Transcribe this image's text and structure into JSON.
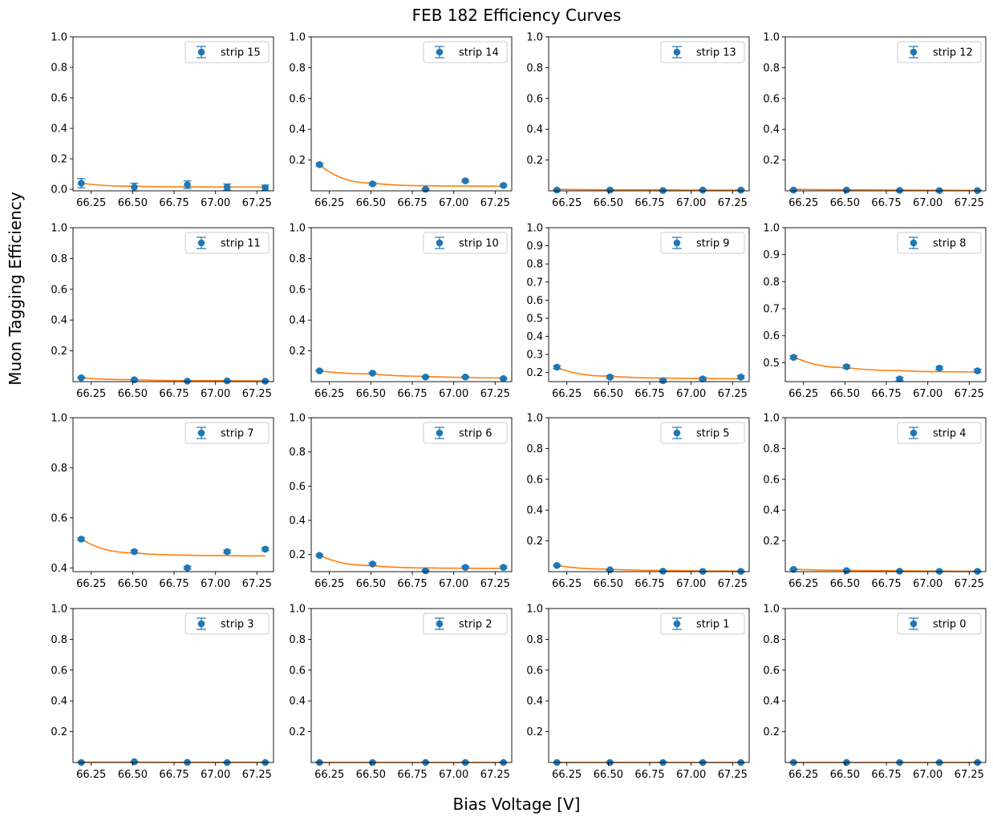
{
  "figure": {
    "title": "FEB 182 Efficiency Curves",
    "xlabel": "Bias Voltage [V]",
    "ylabel": "Muon Tagging Efficiency"
  },
  "colors": {
    "marker": "#1f77b4",
    "fit": "#ff7f0e"
  },
  "chart_data": [
    {
      "type": "scatter",
      "legend": "strip 15",
      "x": [
        66.19,
        66.51,
        66.83,
        67.07,
        67.3
      ],
      "y": [
        0.04,
        0.015,
        0.03,
        0.015,
        0.01
      ],
      "yerr": [
        0.03,
        0.025,
        0.025,
        0.02,
        0.018
      ],
      "ylim": [
        -0.01,
        1.0
      ],
      "yticks": [
        0.0,
        0.2,
        0.4,
        0.6,
        0.8,
        1.0
      ],
      "fit_y": [
        0.04,
        0.02,
        0.016,
        0.015,
        0.015
      ],
      "xticks": [
        66.25,
        66.5,
        66.75,
        67.0,
        67.25
      ],
      "xlim": [
        66.14,
        67.35
      ],
      "legend_position": "top-right"
    },
    {
      "type": "scatter",
      "legend": "strip 14",
      "x": [
        66.19,
        66.51,
        66.83,
        67.07,
        67.3
      ],
      "y": [
        0.17,
        0.045,
        0.01,
        0.065,
        0.035
      ],
      "yerr": [
        0.01,
        0.008,
        0.006,
        0.008,
        0.008
      ],
      "ylim": [
        0.0,
        1.0
      ],
      "yticks": [
        0.2,
        0.4,
        0.6,
        0.8,
        1.0
      ],
      "fit_y": [
        0.168,
        0.05,
        0.033,
        0.031,
        0.03
      ],
      "xticks": [
        66.25,
        66.5,
        66.75,
        67.0,
        67.25
      ],
      "xlim": [
        66.14,
        67.35
      ],
      "legend_position": "top-right"
    },
    {
      "type": "scatter",
      "legend": "strip 13",
      "x": [
        66.19,
        66.51,
        66.83,
        67.07,
        67.3
      ],
      "y": [
        0.005,
        0.005,
        0.002,
        0.005,
        0.005
      ],
      "yerr": [
        0.003,
        0.003,
        0.002,
        0.003,
        0.003
      ],
      "ylim": [
        0.0,
        1.0
      ],
      "yticks": [
        0.2,
        0.4,
        0.6,
        0.8,
        1.0
      ],
      "fit_y": [
        0.01,
        0.007,
        0.006,
        0.005,
        0.005
      ],
      "xticks": [
        66.25,
        66.5,
        66.75,
        67.0,
        67.25
      ],
      "xlim": [
        66.14,
        67.35
      ],
      "legend_position": "top-right"
    },
    {
      "type": "scatter",
      "legend": "strip 12",
      "x": [
        66.19,
        66.51,
        66.83,
        67.07,
        67.3
      ],
      "y": [
        0.005,
        0.005,
        0.003,
        0.002,
        0.002
      ],
      "yerr": [
        0.003,
        0.003,
        0.002,
        0.002,
        0.002
      ],
      "ylim": [
        0.0,
        1.0
      ],
      "yticks": [
        0.2,
        0.4,
        0.6,
        0.8,
        1.0
      ],
      "fit_y": [
        0.01,
        0.007,
        0.005,
        0.004,
        0.003
      ],
      "xticks": [
        66.25,
        66.5,
        66.75,
        67.0,
        67.25
      ],
      "xlim": [
        66.14,
        67.35
      ],
      "legend_position": "top-right"
    },
    {
      "type": "scatter",
      "legend": "strip 11",
      "x": [
        66.19,
        66.51,
        66.83,
        67.07,
        67.3
      ],
      "y": [
        0.025,
        0.012,
        0.003,
        0.005,
        0.003
      ],
      "yerr": [
        0.004,
        0.003,
        0.002,
        0.002,
        0.002
      ],
      "ylim": [
        0.0,
        1.0
      ],
      "yticks": [
        0.2,
        0.4,
        0.6,
        0.8,
        1.0
      ],
      "fit_y": [
        0.025,
        0.012,
        0.007,
        0.006,
        0.005
      ],
      "xticks": [
        66.25,
        66.5,
        66.75,
        67.0,
        67.25
      ],
      "xlim": [
        66.14,
        67.35
      ],
      "legend_position": "top-right"
    },
    {
      "type": "scatter",
      "legend": "strip 10",
      "x": [
        66.19,
        66.51,
        66.83,
        67.07,
        67.3
      ],
      "y": [
        0.07,
        0.055,
        0.03,
        0.03,
        0.02
      ],
      "yerr": [
        0.005,
        0.005,
        0.004,
        0.004,
        0.004
      ],
      "ylim": [
        0.0,
        1.0
      ],
      "yticks": [
        0.2,
        0.4,
        0.6,
        0.8,
        1.0
      ],
      "fit_y": [
        0.07,
        0.05,
        0.035,
        0.028,
        0.024
      ],
      "xticks": [
        66.25,
        66.5,
        66.75,
        67.0,
        67.25
      ],
      "xlim": [
        66.14,
        67.35
      ],
      "legend_position": "top-right"
    },
    {
      "type": "scatter",
      "legend": "strip 9",
      "x": [
        66.19,
        66.51,
        66.83,
        67.07,
        67.3
      ],
      "y": [
        0.23,
        0.175,
        0.155,
        0.165,
        0.175
      ],
      "yerr": [
        0.008,
        0.008,
        0.007,
        0.008,
        0.008
      ],
      "ylim": [
        0.15,
        1.0
      ],
      "yticks": [
        0.2,
        0.3,
        0.4,
        0.5,
        0.6,
        0.7,
        0.8,
        0.9,
        1.0
      ],
      "fit_y": [
        0.227,
        0.18,
        0.17,
        0.167,
        0.166
      ],
      "xticks": [
        66.25,
        66.5,
        66.75,
        67.0,
        67.25
      ],
      "xlim": [
        66.14,
        67.35
      ],
      "legend_position": "top-right"
    },
    {
      "type": "scatter",
      "legend": "strip 8",
      "x": [
        66.19,
        66.51,
        66.83,
        67.07,
        67.3
      ],
      "y": [
        0.52,
        0.485,
        0.44,
        0.48,
        0.47
      ],
      "yerr": [
        0.006,
        0.006,
        0.006,
        0.006,
        0.006
      ],
      "ylim": [
        0.43,
        1.0
      ],
      "yticks": [
        0.5,
        0.6,
        0.7,
        0.8,
        0.9,
        1.0
      ],
      "fit_y": [
        0.522,
        0.482,
        0.471,
        0.467,
        0.466
      ],
      "xticks": [
        66.25,
        66.5,
        66.75,
        67.0,
        67.25
      ],
      "xlim": [
        66.14,
        67.35
      ],
      "legend_position": "top-right"
    },
    {
      "type": "scatter",
      "legend": "strip 7",
      "x": [
        66.19,
        66.51,
        66.83,
        67.07,
        67.3
      ],
      "y": [
        0.515,
        0.465,
        0.4,
        0.465,
        0.475
      ],
      "yerr": [
        0.006,
        0.006,
        0.006,
        0.006,
        0.006
      ],
      "ylim": [
        0.385,
        1.0
      ],
      "yticks": [
        0.4,
        0.6,
        0.8,
        1.0
      ],
      "fit_y": [
        0.515,
        0.46,
        0.451,
        0.449,
        0.448
      ],
      "xticks": [
        66.25,
        66.5,
        66.75,
        67.0,
        67.25
      ],
      "xlim": [
        66.14,
        67.35
      ],
      "legend_position": "top-right"
    },
    {
      "type": "scatter",
      "legend": "strip 6",
      "x": [
        66.19,
        66.51,
        66.83,
        67.07,
        67.3
      ],
      "y": [
        0.195,
        0.145,
        0.105,
        0.125,
        0.125
      ],
      "yerr": [
        0.006,
        0.006,
        0.005,
        0.006,
        0.006
      ],
      "ylim": [
        0.1,
        1.0
      ],
      "yticks": [
        0.2,
        0.4,
        0.6,
        0.8,
        1.0
      ],
      "fit_y": [
        0.195,
        0.135,
        0.122,
        0.12,
        0.119
      ],
      "xticks": [
        66.25,
        66.5,
        66.75,
        67.0,
        67.25
      ],
      "xlim": [
        66.14,
        67.35
      ],
      "legend_position": "top-right"
    },
    {
      "type": "scatter",
      "legend": "strip 5",
      "x": [
        66.19,
        66.51,
        66.83,
        67.07,
        67.3
      ],
      "y": [
        0.04,
        0.012,
        0.003,
        0.002,
        0.002
      ],
      "yerr": [
        0.005,
        0.003,
        0.002,
        0.002,
        0.002
      ],
      "ylim": [
        0.0,
        1.0
      ],
      "yticks": [
        0.2,
        0.4,
        0.6,
        0.8,
        1.0
      ],
      "fit_y": [
        0.04,
        0.016,
        0.008,
        0.005,
        0.004
      ],
      "xticks": [
        66.25,
        66.5,
        66.75,
        67.0,
        67.25
      ],
      "xlim": [
        66.14,
        67.35
      ],
      "legend_position": "top-right"
    },
    {
      "type": "scatter",
      "legend": "strip 4",
      "x": [
        66.19,
        66.51,
        66.83,
        67.07,
        67.3
      ],
      "y": [
        0.015,
        0.007,
        0.003,
        0.002,
        0.002
      ],
      "yerr": [
        0.003,
        0.003,
        0.002,
        0.002,
        0.002
      ],
      "ylim": [
        0.0,
        1.0
      ],
      "yticks": [
        0.2,
        0.4,
        0.6,
        0.8,
        1.0
      ],
      "fit_y": [
        0.016,
        0.009,
        0.006,
        0.004,
        0.003
      ],
      "xticks": [
        66.25,
        66.5,
        66.75,
        67.0,
        67.25
      ],
      "xlim": [
        66.14,
        67.35
      ],
      "legend_position": "top-right"
    },
    {
      "type": "scatter",
      "legend": "strip 3",
      "x": [
        66.19,
        66.51,
        66.83,
        67.07,
        67.3
      ],
      "y": [
        0.0,
        0.005,
        0.001,
        0.0,
        0.0
      ],
      "yerr": [
        0.001,
        0.002,
        0.001,
        0.001,
        0.001
      ],
      "ylim": [
        0.0,
        1.0
      ],
      "yticks": [
        0.2,
        0.4,
        0.6,
        0.8,
        1.0
      ],
      "fit_y": [
        0.002,
        0.002,
        0.001,
        0.001,
        0.001
      ],
      "xticks": [
        66.25,
        66.5,
        66.75,
        67.0,
        67.25
      ],
      "xlim": [
        66.14,
        67.35
      ],
      "legend_position": "top-right"
    },
    {
      "type": "scatter",
      "legend": "strip 2",
      "x": [
        66.19,
        66.51,
        66.83,
        67.07,
        67.3
      ],
      "y": [
        0.0,
        0.0,
        0.0,
        0.0,
        0.0
      ],
      "yerr": [
        0.001,
        0.001,
        0.001,
        0.001,
        0.001
      ],
      "ylim": [
        0.0,
        1.0
      ],
      "yticks": [
        0.2,
        0.4,
        0.6,
        0.8,
        1.0
      ],
      "fit_y": [
        0.0,
        0.0,
        0.0,
        0.0,
        0.0
      ],
      "xticks": [
        66.25,
        66.5,
        66.75,
        67.0,
        67.25
      ],
      "xlim": [
        66.14,
        67.35
      ],
      "legend_position": "top-right"
    },
    {
      "type": "scatter",
      "legend": "strip 1",
      "x": [
        66.19,
        66.51,
        66.83,
        67.07,
        67.3
      ],
      "y": [
        0.0,
        0.0,
        0.0,
        0.0,
        0.0
      ],
      "yerr": [
        0.001,
        0.001,
        0.001,
        0.001,
        0.001
      ],
      "ylim": [
        0.0,
        1.0
      ],
      "yticks": [
        0.2,
        0.4,
        0.6,
        0.8,
        1.0
      ],
      "fit_y": [
        0.0,
        0.0,
        0.0,
        0.0,
        0.0
      ],
      "xticks": [
        66.25,
        66.5,
        66.75,
        67.0,
        67.25
      ],
      "xlim": [
        66.14,
        67.35
      ],
      "legend_position": "top-right"
    },
    {
      "type": "scatter",
      "legend": "strip 0",
      "x": [
        66.19,
        66.51,
        66.83,
        67.07,
        67.3
      ],
      "y": [
        0.0,
        0.0,
        0.0,
        0.0,
        0.0
      ],
      "yerr": [
        0.001,
        0.001,
        0.001,
        0.001,
        0.001
      ],
      "ylim": [
        0.0,
        1.0
      ],
      "yticks": [
        0.2,
        0.4,
        0.6,
        0.8,
        1.0
      ],
      "fit_y": [
        0.0,
        0.0,
        0.0,
        0.0,
        0.0
      ],
      "xticks": [
        66.25,
        66.5,
        66.75,
        67.0,
        67.25
      ],
      "xlim": [
        66.14,
        67.35
      ],
      "legend_position": "top-right"
    }
  ]
}
